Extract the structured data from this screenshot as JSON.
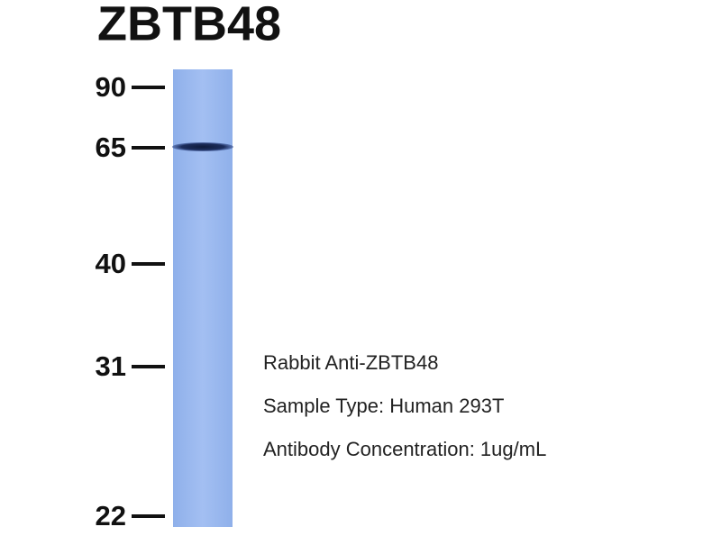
{
  "title": "ZBTB48",
  "markers": [
    "90",
    "65",
    "40",
    "31",
    "22"
  ],
  "notes": [
    "Rabbit Anti-ZBTB48",
    "Sample Type: Human 293T",
    "Antibody Concentration: 1ug/mL"
  ]
}
